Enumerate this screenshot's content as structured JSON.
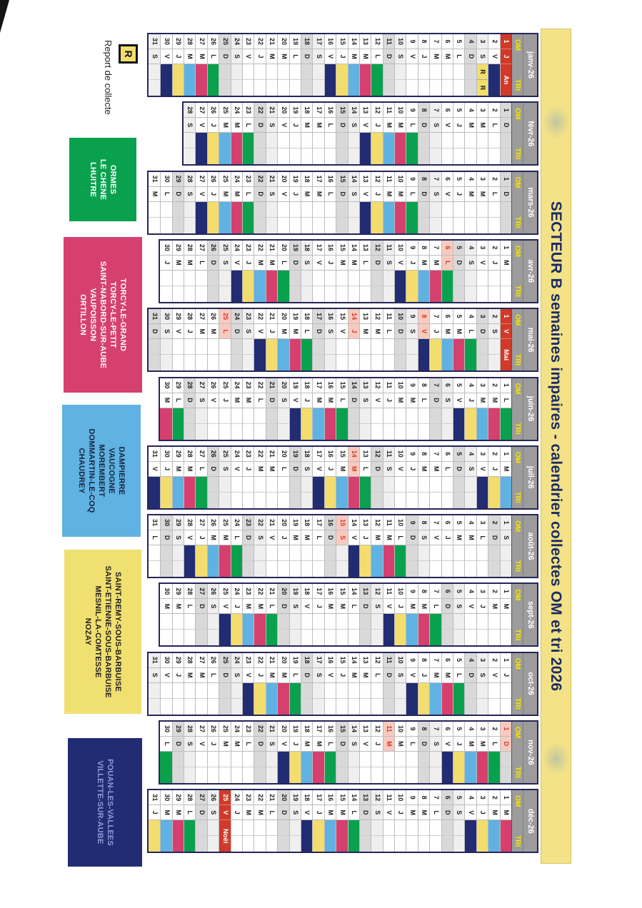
{
  "title": "SECTEUR B semaines impaires - calendrier collectes OM et tri 2026",
  "legend": {
    "symbol": "R",
    "label": "Report de collecte"
  },
  "header_labels": {
    "om": "OM",
    "tri": "TRI"
  },
  "day_letters": [
    "L",
    "M",
    "M",
    "J",
    "V",
    "S",
    "D"
  ],
  "colors": {
    "green": "#0aa14e",
    "pink": "#d5406f",
    "blue": "#5fb2e2",
    "yellow": "#f2dd6e",
    "navy": "#222c72",
    "holiday_red": "#d13a28",
    "holiday_pale": "#f8cabf",
    "sunday_gray": "#d9d9d9",
    "saturday_gray": "#efefef",
    "title_band_yellow": "#f3e287",
    "header_gray": "#9c9c9c",
    "om_tri_yellow": "#f8e400"
  },
  "groups": [
    {
      "color": "green",
      "bg": "#0aa14e",
      "text": "#ffffff",
      "communes": [
        "ORMES",
        "LE CHENE",
        "LHUITRE"
      ]
    },
    {
      "color": "pink",
      "bg": "#d5406f",
      "text": "#ffffff",
      "communes": [
        "TORCY-LE-GRAND",
        "TORCY-LE-PETIT",
        "SAINT-NABORD-SUR-AUBE",
        "VAUPOISSON",
        "ORTILLON"
      ]
    },
    {
      "color": "blue",
      "bg": "#5fb2e2",
      "text": "#16233c",
      "communes": [
        "DAMPIERRE",
        "VAUCOGNE",
        "MOREMBERT",
        "DOMMARTIN-LE-COQ",
        "CHAUDREY"
      ]
    },
    {
      "color": "yellow",
      "bg": "#f0e070",
      "text": "#1d1d1d",
      "communes": [
        "SAINT-REMY-SOUS-BARBUISE",
        "SAINT-ETIENNE-SOUS-BARBUISE",
        "MESNIL-LA-COMTESSE",
        "NOZAY"
      ]
    },
    {
      "color": "navy",
      "bg": "#222c72",
      "text": "#8d9cd6",
      "communes": [
        "POUAN-LES-VALLEES",
        "VILLETTE-SUR-AUBE"
      ]
    }
  ],
  "months": [
    {
      "name": "janv-26",
      "days": 31,
      "first_weekday": 3,
      "collect": {
        "2": "navy",
        "12": "green",
        "13": "pink",
        "14": "blue",
        "15": "yellow",
        "16": "navy",
        "26": "green",
        "27": "pink",
        "28": "blue",
        "29": "yellow",
        "30": "navy"
      },
      "report_days": [
        3
      ],
      "holidays_full": {
        "1": "An"
      },
      "holidays_pale": []
    },
    {
      "name": "févr-26",
      "days": 28,
      "first_weekday": 6,
      "collect": {
        "9": "green",
        "10": "pink",
        "11": "blue",
        "12": "yellow",
        "13": "navy",
        "23": "green",
        "24": "pink",
        "25": "blue",
        "26": "yellow",
        "27": "navy"
      },
      "report_days": [],
      "holidays_full": {},
      "holidays_pale": []
    },
    {
      "name": "mars-26",
      "days": 31,
      "first_weekday": 6,
      "collect": {
        "9": "green",
        "10": "pink",
        "11": "blue",
        "12": "yellow",
        "13": "navy",
        "23": "green",
        "24": "pink",
        "25": "blue",
        "26": "yellow",
        "27": "navy"
      },
      "report_days": [],
      "holidays_full": {},
      "holidays_pale": []
    },
    {
      "name": "avr-26",
      "days": 30,
      "first_weekday": 2,
      "collect": {
        "6": "green",
        "7": "pink",
        "8": "blue",
        "9": "yellow",
        "10": "navy",
        "20": "green",
        "21": "pink",
        "22": "blue",
        "23": "yellow",
        "24": "navy"
      },
      "report_days": [],
      "holidays_full": {},
      "holidays_pale": [
        6
      ]
    },
    {
      "name": "mai-26",
      "days": 31,
      "first_weekday": 4,
      "collect": {
        "4": "green",
        "5": "pink",
        "6": "blue",
        "7": "yellow",
        "8": "navy",
        "18": "green",
        "19": "pink",
        "20": "blue",
        "21": "yellow",
        "22": "navy"
      },
      "report_days": [],
      "holidays_full": {
        "1": "Mai"
      },
      "holidays_pale": [
        8,
        14,
        25
      ]
    },
    {
      "name": "juin-26",
      "days": 30,
      "first_weekday": 0,
      "collect": {
        "1": "green",
        "2": "pink",
        "3": "blue",
        "4": "yellow",
        "5": "navy",
        "15": "green",
        "16": "pink",
        "17": "blue",
        "18": "yellow",
        "19": "navy",
        "29": "green",
        "30": "pink"
      },
      "report_days": [],
      "holidays_full": {},
      "holidays_pale": []
    },
    {
      "name": "juil-26",
      "days": 31,
      "first_weekday": 2,
      "collect": {
        "1": "blue",
        "2": "yellow",
        "3": "navy",
        "13": "green",
        "14": "pink",
        "15": "blue",
        "16": "yellow",
        "17": "navy",
        "27": "green",
        "28": "pink",
        "29": "blue",
        "30": "yellow",
        "31": "navy"
      },
      "report_days": [],
      "holidays_full": {},
      "holidays_pale": [
        14
      ]
    },
    {
      "name": "août-26",
      "days": 31,
      "first_weekday": 5,
      "collect": {
        "10": "green",
        "11": "pink",
        "12": "blue",
        "13": "yellow",
        "14": "navy",
        "24": "green",
        "25": "pink",
        "26": "blue",
        "27": "yellow",
        "28": "navy"
      },
      "report_days": [],
      "holidays_full": {},
      "holidays_pale": [
        15
      ]
    },
    {
      "name": "sept-26",
      "days": 30,
      "first_weekday": 1,
      "collect": {
        "7": "green",
        "8": "pink",
        "9": "blue",
        "10": "yellow",
        "11": "navy",
        "21": "green",
        "22": "pink",
        "23": "blue",
        "24": "yellow",
        "25": "navy"
      },
      "report_days": [],
      "holidays_full": {},
      "holidays_pale": []
    },
    {
      "name": "oct-26",
      "days": 31,
      "first_weekday": 3,
      "collect": {
        "5": "green",
        "6": "pink",
        "7": "blue",
        "8": "yellow",
        "9": "navy",
        "19": "green",
        "20": "pink",
        "21": "blue",
        "22": "yellow",
        "23": "navy"
      },
      "report_days": [],
      "holidays_full": {},
      "holidays_pale": []
    },
    {
      "name": "nov-26",
      "days": 30,
      "first_weekday": 6,
      "collect": {
        "2": "green",
        "3": "pink",
        "4": "blue",
        "5": "yellow",
        "6": "navy",
        "16": "green",
        "17": "pink",
        "18": "blue",
        "19": "yellow",
        "20": "navy",
        "30": "green"
      },
      "report_days": [],
      "holidays_full": {},
      "holidays_pale": [
        1,
        11
      ]
    },
    {
      "name": "déc-26",
      "days": 31,
      "first_weekday": 1,
      "collect": {
        "1": "pink",
        "2": "blue",
        "3": "yellow",
        "4": "navy",
        "14": "green",
        "15": "pink",
        "16": "blue",
        "17": "yellow",
        "18": "navy",
        "28": "green",
        "29": "pink",
        "30": "blue",
        "31": "yellow"
      },
      "report_days": [],
      "holidays_full": {
        "25": "Noël"
      },
      "holidays_pale": []
    }
  ]
}
